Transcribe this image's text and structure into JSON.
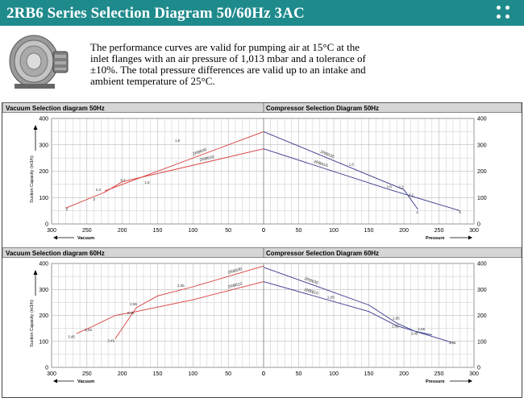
{
  "header": {
    "title": "2RB6 Series Selection Diagram 50/60Hz 3AC"
  },
  "intro": {
    "text": "The performance curves are valid for pumping air at 15°C at the inlet flanges with an air pressure of 1,013 mbar and a tolerance of ±10%. The total pressure differences are valid up to an intake and ambient temperature of 25°C."
  },
  "icons": {
    "menu": "dots-grid-icon",
    "product": "blower-image"
  },
  "colors": {
    "header": "#1f8a8c",
    "vacuum_curve": "#d93a3a",
    "compressor_curve": "#3a3a8c",
    "grid": "#c8c8c8"
  },
  "chart_data": [
    {
      "type": "line",
      "title": "Vacuum Selection diagram 50Hz",
      "xlabel": "Vacuum",
      "ylabel": "Suction Capacity (m3/h)",
      "xlim": [
        300,
        0
      ],
      "ylim": [
        0,
        400
      ],
      "xticks": [
        300,
        250,
        200,
        150,
        100,
        50,
        0
      ],
      "yticks": [
        0,
        100,
        200,
        300,
        400
      ],
      "series": [
        {
          "name": "2RB630",
          "points": [
            [
              225,
              125
            ],
            [
              0,
              350
            ]
          ]
        },
        {
          "name": "2RB610",
          "points": [
            [
              280,
              60
            ],
            [
              225,
              120
            ],
            [
              200,
              160
            ],
            [
              0,
              285
            ]
          ]
        }
      ],
      "annotations": [
        {
          "text": "5",
          "x": 278,
          "y": 50
        },
        {
          "text": "3",
          "x": 240,
          "y": 88
        },
        {
          "text": "2,2",
          "x": 234,
          "y": 125
        },
        {
          "text": "2,2",
          "x": 199,
          "y": 162
        },
        {
          "text": "1,6",
          "x": 165,
          "y": 152
        },
        {
          "text": "1,6",
          "x": 122,
          "y": 312
        }
      ]
    },
    {
      "type": "line",
      "title": "Compressor Selection Diagram 50Hz",
      "xlabel": "Pressure",
      "ylabel": "",
      "xlim": [
        0,
        300
      ],
      "ylim": [
        0,
        400
      ],
      "xticks": [
        0,
        50,
        100,
        150,
        200,
        250,
        300
      ],
      "yticks": [
        0,
        100,
        200,
        300,
        400
      ],
      "series": [
        {
          "name": "2RB630",
          "points": [
            [
              0,
              350
            ],
            [
              200,
              130
            ],
            [
              220,
              55
            ]
          ]
        },
        {
          "name": "2RB610",
          "points": [
            [
              0,
              285
            ],
            [
              180,
              130
            ],
            [
              280,
              50
            ]
          ]
        }
      ],
      "annotations": [
        {
          "text": "1,6",
          "x": 125,
          "y": 222
        },
        {
          "text": "1,6",
          "x": 179,
          "y": 138
        },
        {
          "text": "2,2",
          "x": 196,
          "y": 136
        },
        {
          "text": "2,2",
          "x": 210,
          "y": 106
        },
        {
          "text": "3",
          "x": 219,
          "y": 40
        },
        {
          "text": "5",
          "x": 280,
          "y": 40
        }
      ]
    },
    {
      "type": "line",
      "title": "Vacuum Selection diagram 60Hz",
      "xlabel": "Vacuum",
      "ylabel": "Suction Capacity (m3/h)",
      "xlim": [
        300,
        0
      ],
      "ylim": [
        0,
        400
      ],
      "xticks": [
        300,
        250,
        200,
        150,
        100,
        50,
        0
      ],
      "yticks": [
        0,
        100,
        200,
        300,
        400
      ],
      "series": [
        {
          "name": "2RB630",
          "points": [
            [
              210,
              110
            ],
            [
              180,
              230
            ],
            [
              150,
              275
            ],
            [
              100,
              310
            ],
            [
              0,
              390
            ]
          ]
        },
        {
          "name": "2RB610",
          "points": [
            [
              265,
              130
            ],
            [
              240,
              160
            ],
            [
              210,
              200
            ],
            [
              180,
              215
            ],
            [
              100,
              260
            ],
            [
              0,
              330
            ]
          ]
        }
      ],
      "annotations": [
        {
          "text": "3,45",
          "x": 272,
          "y": 113
        },
        {
          "text": "2,55",
          "x": 248,
          "y": 140
        },
        {
          "text": "3,45",
          "x": 216,
          "y": 98
        },
        {
          "text": "2,55",
          "x": 184,
          "y": 238
        },
        {
          "text": "2,05",
          "x": 188,
          "y": 205
        },
        {
          "text": "2,05",
          "x": 117,
          "y": 310
        }
      ]
    },
    {
      "type": "line",
      "title": "Compressor Selection Diagram 60Hz",
      "xlabel": "Pressure",
      "ylabel": "",
      "xlim": [
        0,
        300
      ],
      "ylim": [
        0,
        400
      ],
      "xticks": [
        0,
        50,
        100,
        150,
        200,
        250,
        300
      ],
      "yticks": [
        0,
        100,
        200,
        300,
        400
      ],
      "series": [
        {
          "name": "2RB630",
          "points": [
            [
              0,
              385
            ],
            [
              150,
              240
            ],
            [
              190,
              170
            ],
            [
              215,
              140
            ],
            [
              240,
              125
            ]
          ]
        },
        {
          "name": "2RB610",
          "points": [
            [
              0,
              330
            ],
            [
              150,
              215
            ],
            [
              190,
              160
            ],
            [
              270,
              95
            ]
          ]
        }
      ],
      "annotations": [
        {
          "text": "2,05",
          "x": 96,
          "y": 265
        },
        {
          "text": "2,05",
          "x": 189,
          "y": 185
        },
        {
          "text": "2,55",
          "x": 188,
          "y": 153
        },
        {
          "text": "2,55",
          "x": 225,
          "y": 142
        },
        {
          "text": "3,45",
          "x": 215,
          "y": 125
        },
        {
          "text": "3,45",
          "x": 269,
          "y": 90
        }
      ]
    }
  ]
}
